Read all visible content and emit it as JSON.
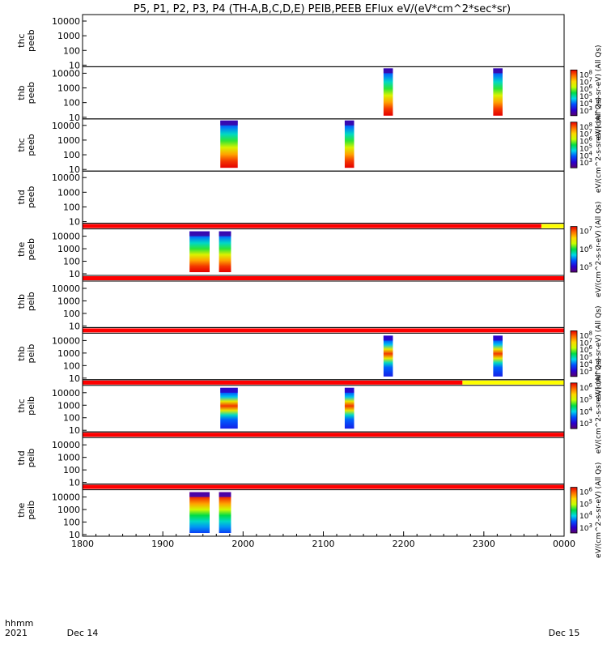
{
  "chart_data": {
    "type": "heatmap",
    "title": "P5, P1, P2, P3, P4 (TH-A,B,C,D,E) PEIB,PEEB EFlux eV/(eV*cm^2*sec*sr)",
    "x_axis": {
      "ticks": [
        "1800",
        "1900",
        "2000",
        "2100",
        "2200",
        "2300",
        "0000"
      ],
      "range_hhmm": [
        "1800",
        "0000"
      ],
      "left_labels": [
        "hhmm",
        "2021"
      ],
      "date_start": "Dec 14",
      "date_end": "Dec 15"
    },
    "colors": {
      "flag_normal": "#ff0000",
      "flag_alt": "#ffff00",
      "frame": "#000000"
    },
    "panels": [
      {
        "ylabel": [
          "thc",
          "peeb"
        ],
        "y_ticks": [
          "10000",
          "1000",
          "100",
          "10"
        ],
        "log_scale": true,
        "bursts": [],
        "colorbar": null
      },
      {
        "ylabel": [
          "thb",
          "peeb"
        ],
        "y_ticks": [
          "10000",
          "1000",
          "100",
          "10"
        ],
        "log_scale": true,
        "bursts": [
          {
            "start": "2145",
            "end": "2152"
          },
          {
            "start": "2307",
            "end": "2314"
          }
        ],
        "colorbar": {
          "ticks": [
            "10^8",
            "10^7",
            "10^6",
            "10^5",
            "10^4",
            "10^3"
          ],
          "label": "eV/(cm^2-s-sr-eV) (All Qs)"
        }
      },
      {
        "ylabel": [
          "thc",
          "peeb"
        ],
        "y_ticks": [
          "10000",
          "1000",
          "100",
          "10"
        ],
        "log_scale": true,
        "bursts": [
          {
            "start": "1943",
            "end": "1956"
          },
          {
            "start": "2116",
            "end": "2123"
          }
        ],
        "colorbar": {
          "ticks": [
            "10^8",
            "10^7",
            "10^6",
            "10^5",
            "10^4",
            "10^3"
          ],
          "label": "eV/(cm^2-s-sr-eV) (All Qs)"
        }
      },
      {
        "ylabel": [
          "thd",
          "peeb"
        ],
        "y_ticks": [
          "10000",
          "1000",
          "100",
          "10"
        ],
        "log_scale": true,
        "bursts": [],
        "colorbar": null
      },
      {
        "ylabel": [
          "the",
          "peeb"
        ],
        "y_ticks": [
          "10000",
          "1000",
          "100",
          "10"
        ],
        "log_scale": true,
        "bursts": [
          {
            "start": "1920",
            "end": "1935"
          },
          {
            "start": "1942",
            "end": "1951"
          }
        ],
        "colorbar": {
          "ticks": [
            "10^7",
            "10^6",
            "10^5"
          ],
          "label": "eV/(cm^2-s-sr-eV) (All Qs)"
        }
      },
      {
        "ylabel": [
          "thb",
          "peib"
        ],
        "y_ticks": [
          "10000",
          "1000",
          "100",
          "10"
        ],
        "log_scale": true,
        "bursts": [],
        "colorbar": null
      },
      {
        "ylabel": [
          "thb",
          "peib"
        ],
        "y_ticks": [
          "10000",
          "1000",
          "100",
          "10"
        ],
        "log_scale": true,
        "bursts": [
          {
            "start": "2145",
            "end": "2152"
          },
          {
            "start": "2307",
            "end": "2314"
          }
        ],
        "colorbar": {
          "ticks": [
            "10^8",
            "10^7",
            "10^6",
            "10^5",
            "10^4",
            "10^3"
          ],
          "label": "eV/(cm^2-s-sr-eV) (All Qs)"
        }
      },
      {
        "ylabel": [
          "thc",
          "peib"
        ],
        "y_ticks": [
          "10000",
          "1000",
          "100",
          "10"
        ],
        "log_scale": true,
        "bursts": [
          {
            "start": "1943",
            "end": "1956"
          },
          {
            "start": "2116",
            "end": "2123"
          }
        ],
        "colorbar": {
          "ticks": [
            "10^6",
            "10^5",
            "10^4",
            "10^3"
          ],
          "label": "eV/(cm^2-s-sr-eV) (All Qs)"
        }
      },
      {
        "ylabel": [
          "thd",
          "peib"
        ],
        "y_ticks": [
          "10000",
          "1000",
          "100",
          "10"
        ],
        "log_scale": true,
        "bursts": [],
        "colorbar": null
      },
      {
        "ylabel": [
          "the",
          "peib"
        ],
        "y_ticks": [
          "10000",
          "1000",
          "100",
          "10"
        ],
        "log_scale": true,
        "bursts": [
          {
            "start": "1920",
            "end": "1935"
          },
          {
            "start": "1942",
            "end": "1951"
          }
        ],
        "colorbar": {
          "ticks": [
            "10^6",
            "10^5",
            "10^4",
            "10^3"
          ],
          "label": "eV/(cm^2-s-sr-eV) (All Qs)"
        }
      }
    ]
  }
}
